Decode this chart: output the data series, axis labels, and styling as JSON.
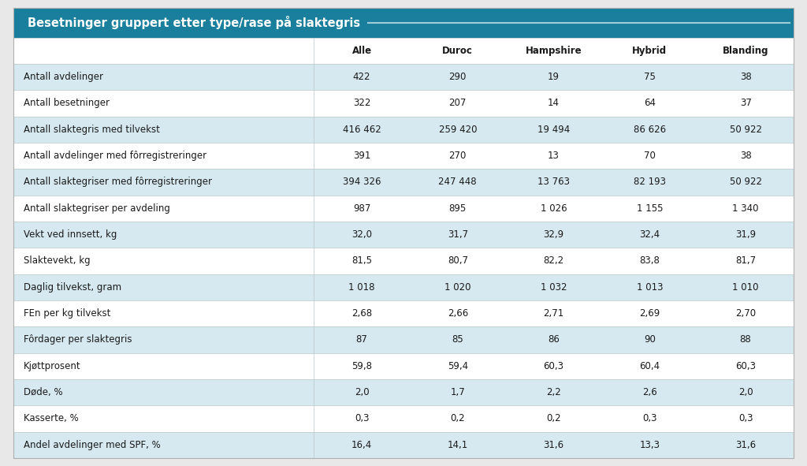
{
  "title": "Besetninger gruppert etter type/rase på slaktegris",
  "header_bg": "#1a7f9c",
  "header_text_color": "#ffffff",
  "title_fontsize": 10.5,
  "columns": [
    "",
    "Alle",
    "Duroc",
    "Hampshire",
    "Hybrid",
    "Blanding"
  ],
  "col_header_fontsize": 8.5,
  "row_fontsize": 8.5,
  "rows": [
    [
      "Antall avdelinger",
      "422",
      "290",
      "19",
      "75",
      "38"
    ],
    [
      "Antall besetninger",
      "322",
      "207",
      "14",
      "64",
      "37"
    ],
    [
      "Antall slaktegris med tilvekst",
      "416 462",
      "259 420",
      "19 494",
      "86 626",
      "50 922"
    ],
    [
      "Antall avdelinger med fôrregistreringer",
      "391",
      "270",
      "13",
      "70",
      "38"
    ],
    [
      "Antall slaktegriser med fôrregistreringer",
      "394 326",
      "247 448",
      "13 763",
      "82 193",
      "50 922"
    ],
    [
      "Antall slaktegriser per avdeling",
      "987",
      "895",
      "1 026",
      "1 155",
      "1 340"
    ],
    [
      "Vekt ved innsett, kg",
      "32,0",
      "31,7",
      "32,9",
      "32,4",
      "31,9"
    ],
    [
      "Slaktevekt, kg",
      "81,5",
      "80,7",
      "82,2",
      "83,8",
      "81,7"
    ],
    [
      "Daglig tilvekst, gram",
      "1 018",
      "1 020",
      "1 032",
      "1 013",
      "1 010"
    ],
    [
      "FEn per kg tilvekst",
      "2,68",
      "2,66",
      "2,71",
      "2,69",
      "2,70"
    ],
    [
      "Fôrdager per slaktegris",
      "87",
      "85",
      "86",
      "90",
      "88"
    ],
    [
      "Kjøttprosent",
      "59,8",
      "59,4",
      "60,3",
      "60,4",
      "60,3"
    ],
    [
      "Døde, %",
      "2,0",
      "1,7",
      "2,2",
      "2,6",
      "2,0"
    ],
    [
      "Kasserte, %",
      "0,3",
      "0,2",
      "0,2",
      "0,3",
      "0,3"
    ],
    [
      "Andel avdelinger med SPF, %",
      "16,4",
      "14,1",
      "31,6",
      "13,3",
      "31,6"
    ]
  ],
  "row_colors_even": "#d6e9f0",
  "row_colors_odd": "#ffffff",
  "col_header_bg": "#ffffff",
  "outer_bg": "#e8e8e8",
  "border_color": "#b0b0b0",
  "line_color": "#c0cdd0",
  "title_line_color": "#a0ccd8"
}
